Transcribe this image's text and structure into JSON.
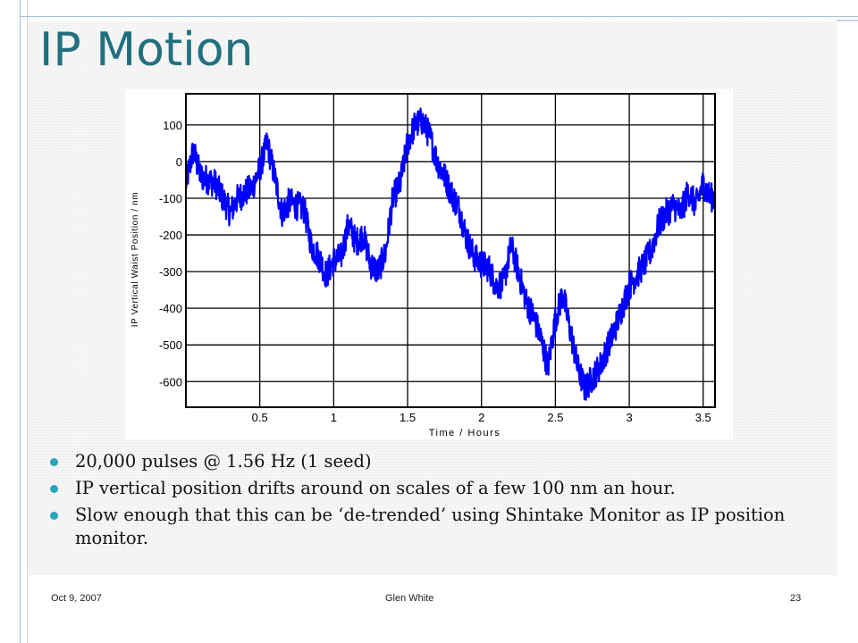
{
  "slide": {
    "title": "IP Motion",
    "bullets": [
      "20,000 pulses @ 1.56 Hz (1 seed)",
      "IP vertical position drifts around on scales of a few 100 nm an hour.",
      "Slow enough that this can be ‘de-trended’ using Shintake Monitor as IP position monitor."
    ],
    "footer": {
      "date": "Oct 9, 2007",
      "author": "Glen White",
      "page": "23"
    }
  },
  "colors": {
    "title": "#21707f",
    "bullet": "#2aa3bd",
    "series": "#0000ff"
  },
  "chart_data": {
    "type": "line",
    "title": "",
    "xlabel": "Time / Hours",
    "ylabel": "IP Vertical Waist Position / nm",
    "xlim": [
      0,
      3.58
    ],
    "ylim": [
      -670,
      185
    ],
    "xticks": [
      0.5,
      1,
      1.5,
      2,
      2.5,
      3,
      3.5
    ],
    "xtick_labels": [
      "0.5",
      "1",
      "1.5",
      "2",
      "2.5",
      "3",
      "3.5"
    ],
    "yticks": [
      100,
      0,
      -100,
      -200,
      -300,
      -400,
      -500,
      -600
    ],
    "ytick_labels": [
      "100",
      "0",
      "-100",
      "-200",
      "-300",
      "-400",
      "-500",
      "-600"
    ],
    "grid": true,
    "legend": "none",
    "series": [
      {
        "name": "",
        "color": "#0000ff",
        "noise_amplitude_nm": 40,
        "x": [
          0,
          0.05,
          0.1,
          0.2,
          0.3,
          0.35,
          0.45,
          0.5,
          0.55,
          0.6,
          0.65,
          0.7,
          0.8,
          0.85,
          0.9,
          0.95,
          1.0,
          1.05,
          1.1,
          1.15,
          1.2,
          1.25,
          1.3,
          1.35,
          1.4,
          1.45,
          1.5,
          1.55,
          1.6,
          1.65,
          1.7,
          1.75,
          1.8,
          1.85,
          1.9,
          1.95,
          2.0,
          2.05,
          2.1,
          2.15,
          2.2,
          2.25,
          2.3,
          2.35,
          2.4,
          2.45,
          2.5,
          2.55,
          2.6,
          2.65,
          2.7,
          2.75,
          2.8,
          2.9,
          3.0,
          3.1,
          3.15,
          3.2,
          3.25,
          3.3,
          3.35,
          3.4,
          3.45,
          3.5,
          3.55,
          3.58
        ],
        "y": [
          -60,
          30,
          -40,
          -60,
          -140,
          -100,
          -70,
          -20,
          50,
          -40,
          -140,
          -110,
          -130,
          -230,
          -260,
          -310,
          -270,
          -260,
          -170,
          -220,
          -200,
          -280,
          -300,
          -250,
          -100,
          -60,
          50,
          100,
          110,
          70,
          0,
          -40,
          -90,
          -130,
          -210,
          -260,
          -280,
          -290,
          -340,
          -330,
          -230,
          -300,
          -380,
          -420,
          -480,
          -560,
          -430,
          -360,
          -460,
          -560,
          -620,
          -590,
          -560,
          -460,
          -340,
          -280,
          -240,
          -170,
          -140,
          -120,
          -140,
          -80,
          -120,
          -60,
          -100,
          -90
        ]
      }
    ]
  }
}
